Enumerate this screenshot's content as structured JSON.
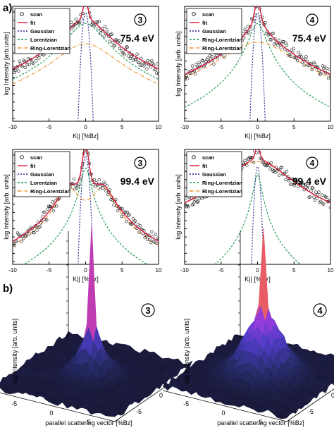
{
  "figure": {
    "label_a": "a)",
    "label_b": "b)"
  },
  "colors": {
    "scan": "#111111",
    "fit": "#d8183a",
    "gaussian": "#1f1f8f",
    "lorentzian": "#1a9a4a",
    "ring_lorentzian": "#f08a1c"
  },
  "chart_data": [
    {
      "type": "line",
      "panel": "a-top-left",
      "sample_badge": "3",
      "energy": "75.4 eV",
      "xlabel": "K|| [%Bz]",
      "ylabel": "log Intensity [arb.units]",
      "xlim": [
        -10,
        10
      ],
      "xticks": [
        -10,
        -5,
        0,
        5,
        10
      ],
      "yscale": "log",
      "legend": [
        "scan",
        "fit",
        "Gaussian",
        "Lorentzian",
        "Ring-Lorentzian"
      ],
      "legend_placement": "top-left",
      "params": {
        "gauss_w": 0.3,
        "gauss_a": 1.0,
        "lor_a": 0.55,
        "lor_g": 2.2,
        "ring_r": 0,
        "ring_a": 0.18,
        "ring_g": 3.5,
        "base": 0.0
      }
    },
    {
      "type": "line",
      "panel": "a-top-right",
      "sample_badge": "4",
      "energy": "75.4 eV",
      "xlabel": "K|| [%Bz]",
      "ylabel": "log Intensity [arb. units]",
      "xlim": [
        -10,
        10
      ],
      "xticks": [
        -10,
        -5,
        0,
        5,
        10
      ],
      "yscale": "log",
      "legend": [
        "scan",
        "fit",
        "Gaussian",
        "Ring-Lorentzian",
        "Ring-Lorentzian"
      ],
      "legend_placement": "top-left",
      "params": {
        "gauss_w": 0.3,
        "gauss_a": 1.0,
        "lor_a": 0.55,
        "lor_g": 1.0,
        "ring_r": 0.6,
        "ring_a": 0.2,
        "ring_g": 4.0,
        "base": 0.0
      }
    },
    {
      "type": "line",
      "panel": "a-bottom-left",
      "sample_badge": "3",
      "energy": "99.4 eV",
      "xlabel": "K|| [%Bz]",
      "ylabel": "log Intensity [arb. units]",
      "xlim": [
        -10,
        10
      ],
      "xticks": [
        -10,
        -5,
        0,
        5,
        10
      ],
      "yscale": "log",
      "legend": [
        "scan",
        "fit",
        "Gaussian",
        "Lorentzian",
        "Ring-Lorentzian"
      ],
      "legend_placement": "top-left",
      "params": {
        "gauss_w": 0.3,
        "gauss_a": 1.0,
        "lor_a": 0.5,
        "lor_g": 0.6,
        "ring_r": 2.3,
        "ring_a": 0.32,
        "ring_g": 1.4,
        "base": 0.0
      }
    },
    {
      "type": "line",
      "panel": "a-bottom-right",
      "sample_badge": "4",
      "energy": "99.4 eV",
      "xlabel": "K|| [%Bz]",
      "ylabel": "log Intensity [arb. units]",
      "xlim": [
        -10,
        10
      ],
      "xticks": [
        -10,
        -5,
        0,
        5,
        10
      ],
      "yscale": "log",
      "legend": [
        "scan",
        "fit",
        "Gaussian",
        "Ring-Lorentzian",
        "Ring-Lorentzian"
      ],
      "legend_placement": "top-left",
      "params": {
        "gauss_w": 0.25,
        "gauss_a": 0.55,
        "lor_a": 0.35,
        "lor_g": 0.5,
        "ring_r": 0.9,
        "ring_a": 0.78,
        "ring_g": 3.2,
        "base": 0.0
      }
    },
    {
      "type": "heatmap",
      "panel": "b-left",
      "sample_badge": "3",
      "zlabel": "log intensity [arb. units]",
      "xlabel": "parallel scattering vector [%Bz]",
      "ticks": [
        "-5",
        "0",
        "5"
      ]
    },
    {
      "type": "heatmap",
      "panel": "b-right",
      "sample_badge": "4",
      "zlabel": "log intensity [arb. units]",
      "xlabel": "parallel scattering vector [%Bz]",
      "ticks": [
        "-5",
        "0",
        "5"
      ]
    }
  ]
}
